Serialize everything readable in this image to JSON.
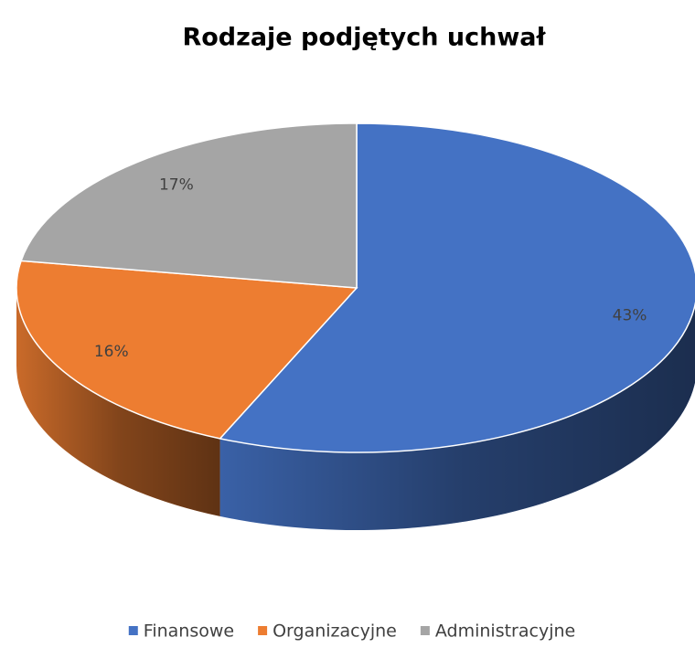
{
  "chart_data": {
    "type": "pie",
    "title": "Rodzaje podjętych uchwał",
    "categories": [
      "Finansowe",
      "Organizacyjne",
      "Administracyjne"
    ],
    "values": [
      43,
      16,
      17
    ],
    "value_labels": [
      "43%",
      "16%",
      "17%"
    ],
    "colors": [
      "#4472c4",
      "#ed7d31",
      "#a5a5a5"
    ],
    "legend": "bottom"
  }
}
